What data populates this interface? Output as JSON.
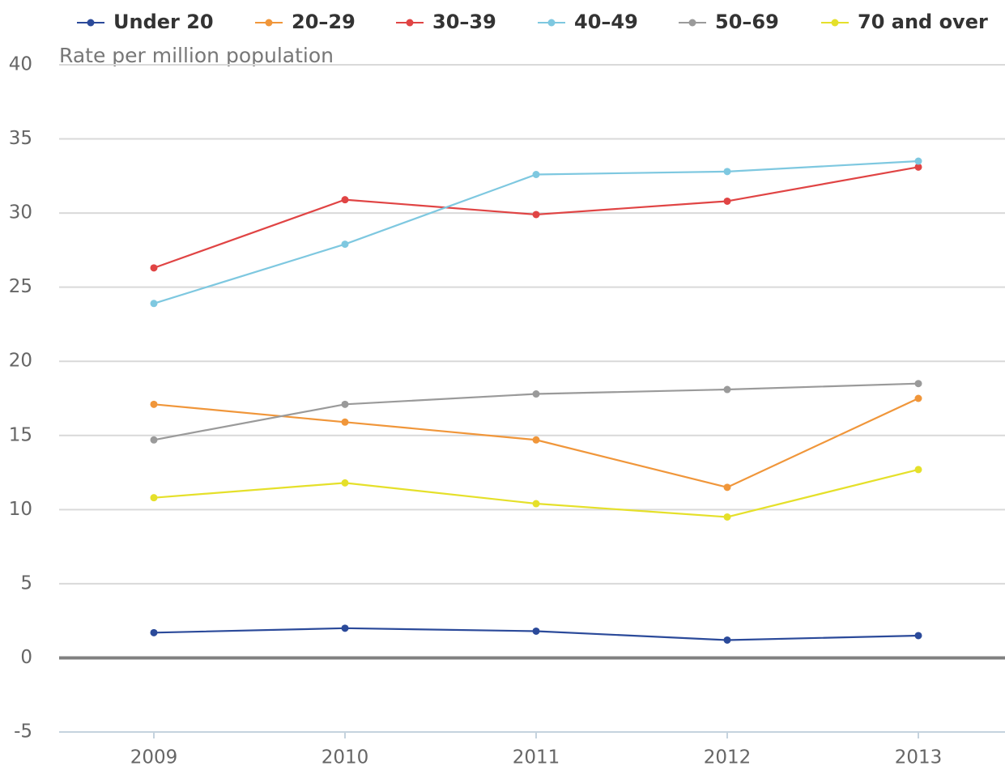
{
  "chart_data": {
    "type": "line",
    "y_axis_label": "Rate per million population",
    "categories": [
      "2009",
      "2010",
      "2011",
      "2012",
      "2013"
    ],
    "series": [
      {
        "name": "Under 20",
        "color": "#2b4a9a",
        "values": [
          1.7,
          2.0,
          1.8,
          1.2,
          1.5
        ]
      },
      {
        "name": "20–29",
        "color": "#f0963a",
        "values": [
          17.1,
          15.9,
          14.7,
          11.5,
          17.5
        ]
      },
      {
        "name": "30–39",
        "color": "#e04444",
        "values": [
          26.3,
          30.9,
          29.9,
          30.8,
          33.1
        ]
      },
      {
        "name": "40–49",
        "color": "#7ec8e0",
        "values": [
          23.9,
          27.9,
          32.6,
          32.8,
          33.5
        ]
      },
      {
        "name": "50–69",
        "color": "#9a9a9a",
        "values": [
          14.7,
          17.1,
          17.8,
          18.1,
          18.5
        ]
      },
      {
        "name": "70 and over",
        "color": "#e5e02a",
        "values": [
          10.8,
          11.8,
          10.4,
          9.5,
          12.7
        ]
      }
    ],
    "ylim": [
      -5,
      40
    ],
    "yticks": [
      -5,
      0,
      5,
      10,
      15,
      20,
      25,
      30,
      35,
      40
    ],
    "grid": true,
    "legend": "top"
  }
}
